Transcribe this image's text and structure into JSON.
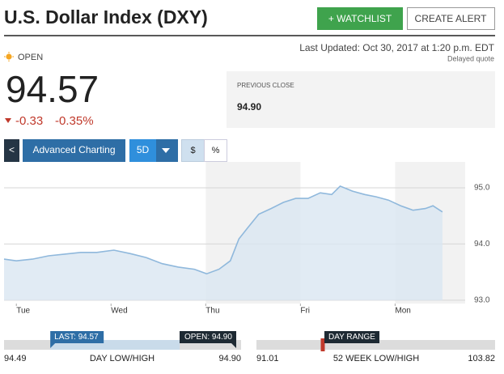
{
  "header": {
    "title": "U.S. Dollar Index (DXY)",
    "watchlist_button": "+ WATCHLIST",
    "alert_button": "CREATE ALERT"
  },
  "quote": {
    "status": "OPEN",
    "last_updated": "Last Updated: Oct 30, 2017 at 1:20 p.m. EDT",
    "delay_note": "Delayed quote",
    "price": "94.57",
    "change": "-0.33",
    "change_percent": "-0.35%",
    "previous_close_label": "PREVIOUS CLOSE",
    "previous_close": "94.90"
  },
  "toolbar": {
    "back": "<",
    "advanced": "Advanced Charting",
    "period": "5D",
    "dollar": "$",
    "percent": "%"
  },
  "chart_data": {
    "type": "area",
    "x": [
      -0.13,
      0,
      0.17,
      0.34,
      0.51,
      0.68,
      0.85,
      1.03,
      1.2,
      1.37,
      1.54,
      1.71,
      1.88,
      2.01,
      2.14,
      2.26,
      2.35,
      2.44,
      2.56,
      2.69,
      2.82,
      2.95,
      3.08,
      3.21,
      3.33,
      3.42,
      3.55,
      3.68,
      3.8,
      3.93,
      4.06,
      4.19,
      4.32,
      4.4,
      4.5
    ],
    "values": [
      93.73,
      93.7,
      93.73,
      93.79,
      93.82,
      93.85,
      93.85,
      93.89,
      93.83,
      93.76,
      93.65,
      93.59,
      93.55,
      93.47,
      93.55,
      93.7,
      94.09,
      94.28,
      94.53,
      94.63,
      94.74,
      94.81,
      94.81,
      94.91,
      94.88,
      95.03,
      94.94,
      94.88,
      94.84,
      94.78,
      94.68,
      94.6,
      94.63,
      94.68,
      94.57
    ],
    "color": "#8fb8dc",
    "xlim": [
      -0.13,
      4.74
    ],
    "xticks": [
      {
        "value": 0,
        "label": "Tue"
      },
      {
        "value": 1,
        "label": "Wed"
      },
      {
        "value": 2,
        "label": "Thu"
      },
      {
        "value": 3,
        "label": "Fri"
      },
      {
        "value": 4,
        "label": "Mon"
      }
    ],
    "ylim": [
      92.94,
      95.46
    ],
    "yticks": [
      {
        "value": 93,
        "label": "93.0"
      },
      {
        "value": 94,
        "label": "94.0"
      },
      {
        "value": 95,
        "label": "95.0"
      }
    ],
    "grid": true
  },
  "ranges": [
    {
      "low": "94.49",
      "label": "DAY LOW/HIGH",
      "high": "94.90",
      "marker_tag": "LAST: 94.57",
      "end_tag": "OPEN: 94.90"
    },
    {
      "low": "91.01",
      "label": "52 WEEK LOW/HIGH",
      "high": "103.82",
      "marker_tag": "DAY RANGE"
    }
  ]
}
